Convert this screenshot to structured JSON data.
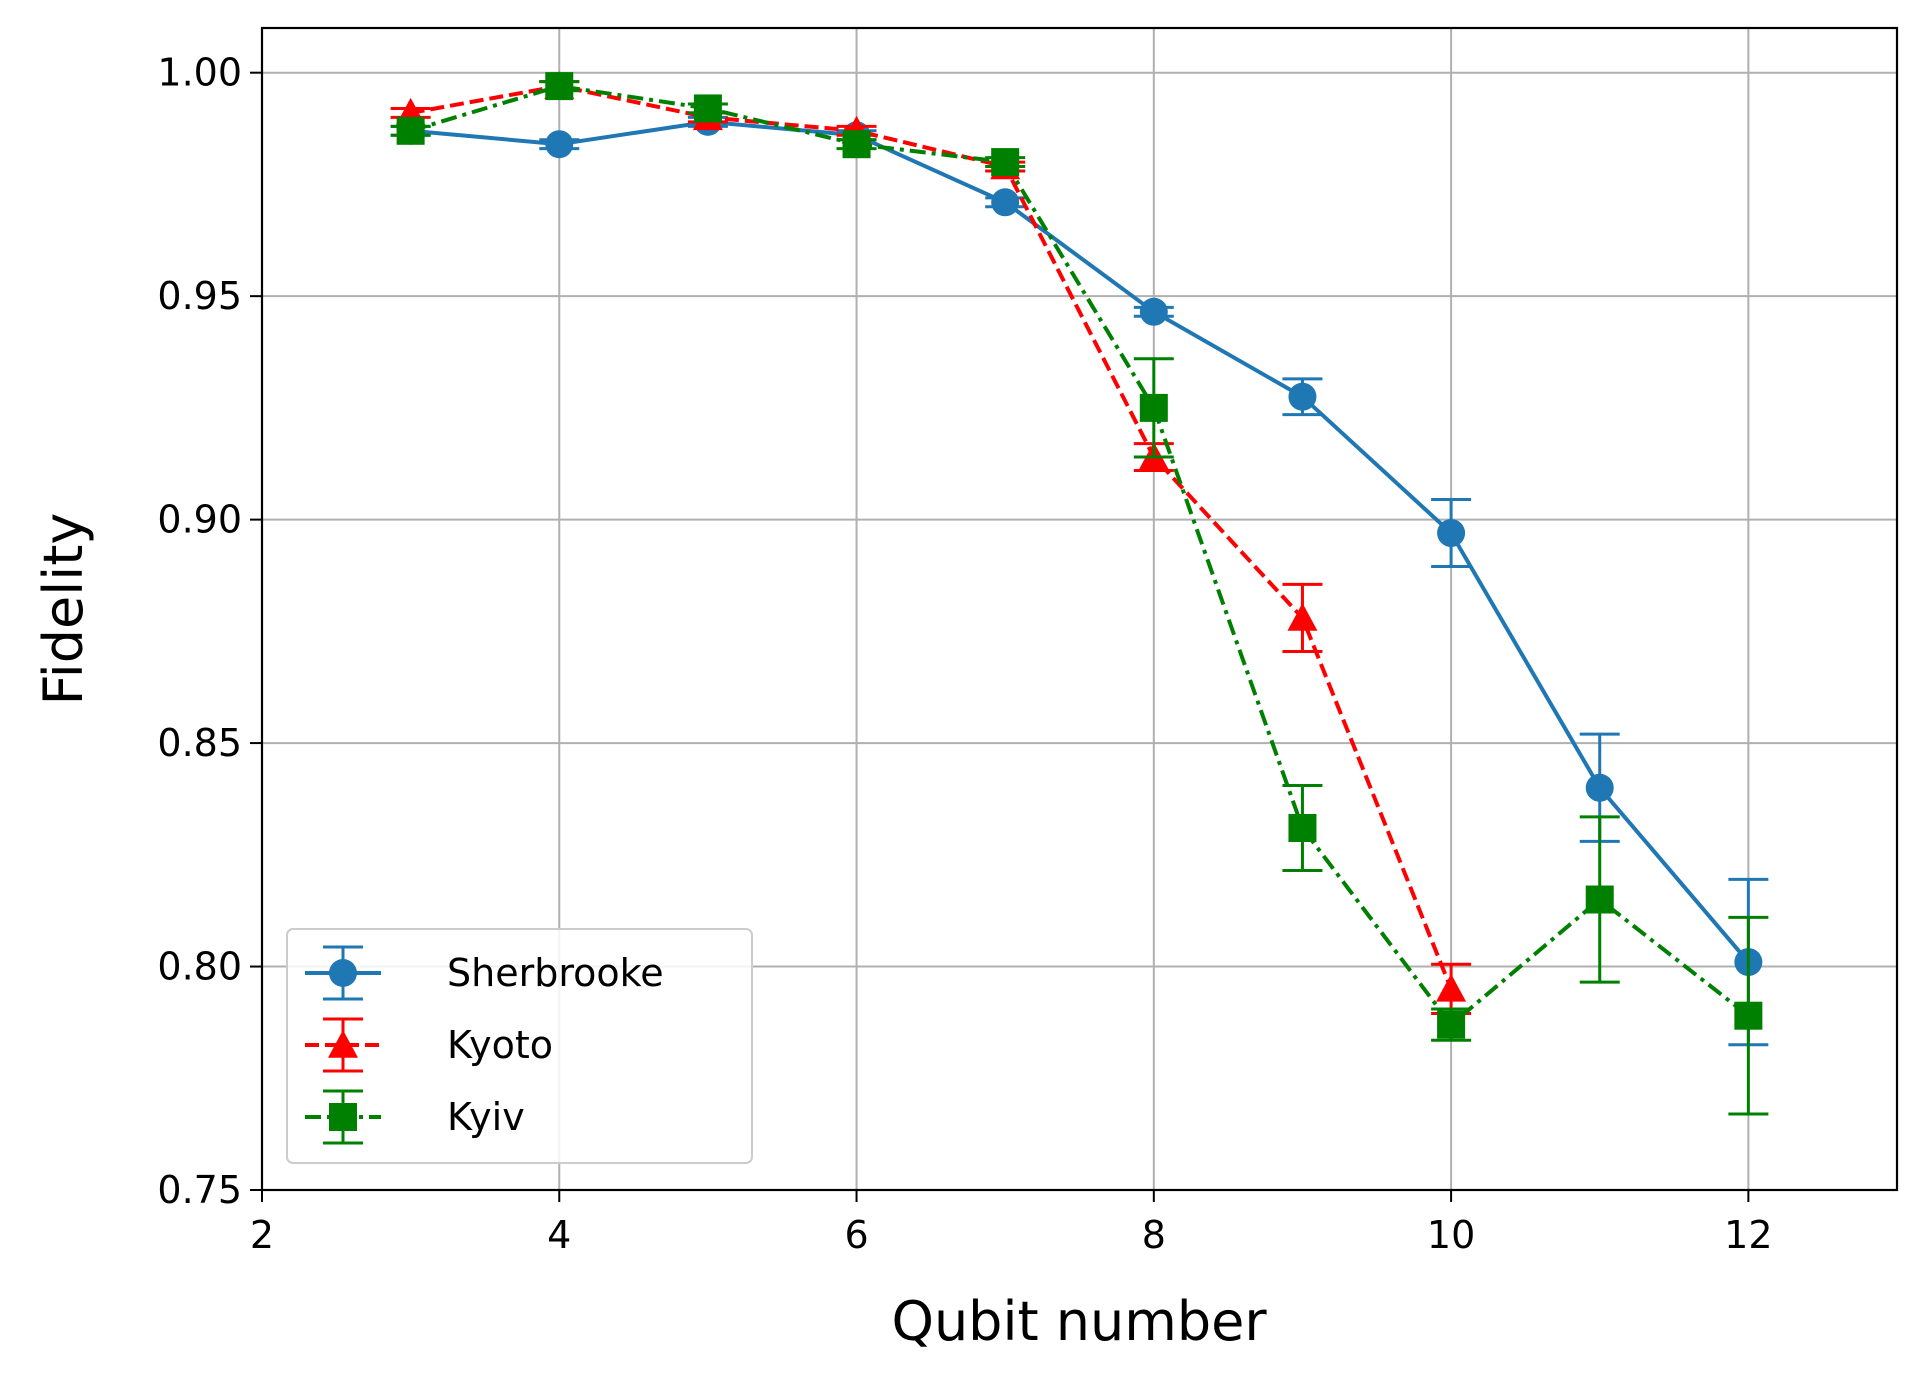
{
  "chart_data": {
    "type": "line",
    "title": "",
    "xlabel": "Qubit number",
    "ylabel": "Fidelity",
    "xlim": [
      2,
      13
    ],
    "ylim": [
      0.75,
      1.01
    ],
    "xticks": [
      2,
      4,
      6,
      8,
      10,
      12
    ],
    "xtick_labels": [
      "2",
      "4",
      "6",
      "8",
      "10",
      "12"
    ],
    "yticks": [
      0.75,
      0.8,
      0.85,
      0.9,
      0.95,
      1.0
    ],
    "ytick_labels": [
      "0.75",
      "0.80",
      "0.85",
      "0.90",
      "0.95",
      "1.00"
    ],
    "grid": true,
    "legend_position": "lower-left",
    "series": [
      {
        "name": "Sherbrooke",
        "color": "#1f77b4",
        "linestyle": "solid",
        "marker": "circle",
        "x": [
          3,
          4,
          5,
          6,
          7,
          8,
          9,
          10,
          11,
          12
        ],
        "y": [
          0.987,
          0.984,
          0.989,
          0.986,
          0.971,
          0.9465,
          0.9275,
          0.897,
          0.84,
          0.801
        ],
        "err": [
          0.001,
          0.001,
          0.001,
          0.001,
          0.001,
          0.001,
          0.004,
          0.0075,
          0.012,
          0.0185
        ]
      },
      {
        "name": "Kyoto",
        "color": "#ff0000",
        "linestyle": "dashed",
        "marker": "triangle",
        "x": [
          3,
          4,
          5,
          6,
          7,
          8,
          9,
          10
        ],
        "y": [
          0.991,
          0.997,
          0.99,
          0.987,
          0.979,
          0.914,
          0.878,
          0.795
        ],
        "err": [
          0.001,
          0.001,
          0.001,
          0.001,
          0.001,
          0.003,
          0.0075,
          0.0055
        ]
      },
      {
        "name": "Kyiv",
        "color": "#008000",
        "linestyle": "dashdot",
        "marker": "square",
        "x": [
          3,
          4,
          5,
          6,
          7,
          8,
          9,
          10,
          11,
          12
        ],
        "y": [
          0.987,
          0.997,
          0.992,
          0.984,
          0.98,
          0.925,
          0.831,
          0.787,
          0.815,
          0.789
        ],
        "err": [
          0.001,
          0.001,
          0.001,
          0.001,
          0.001,
          0.011,
          0.0095,
          0.0035,
          0.0185,
          0.022
        ]
      }
    ]
  }
}
